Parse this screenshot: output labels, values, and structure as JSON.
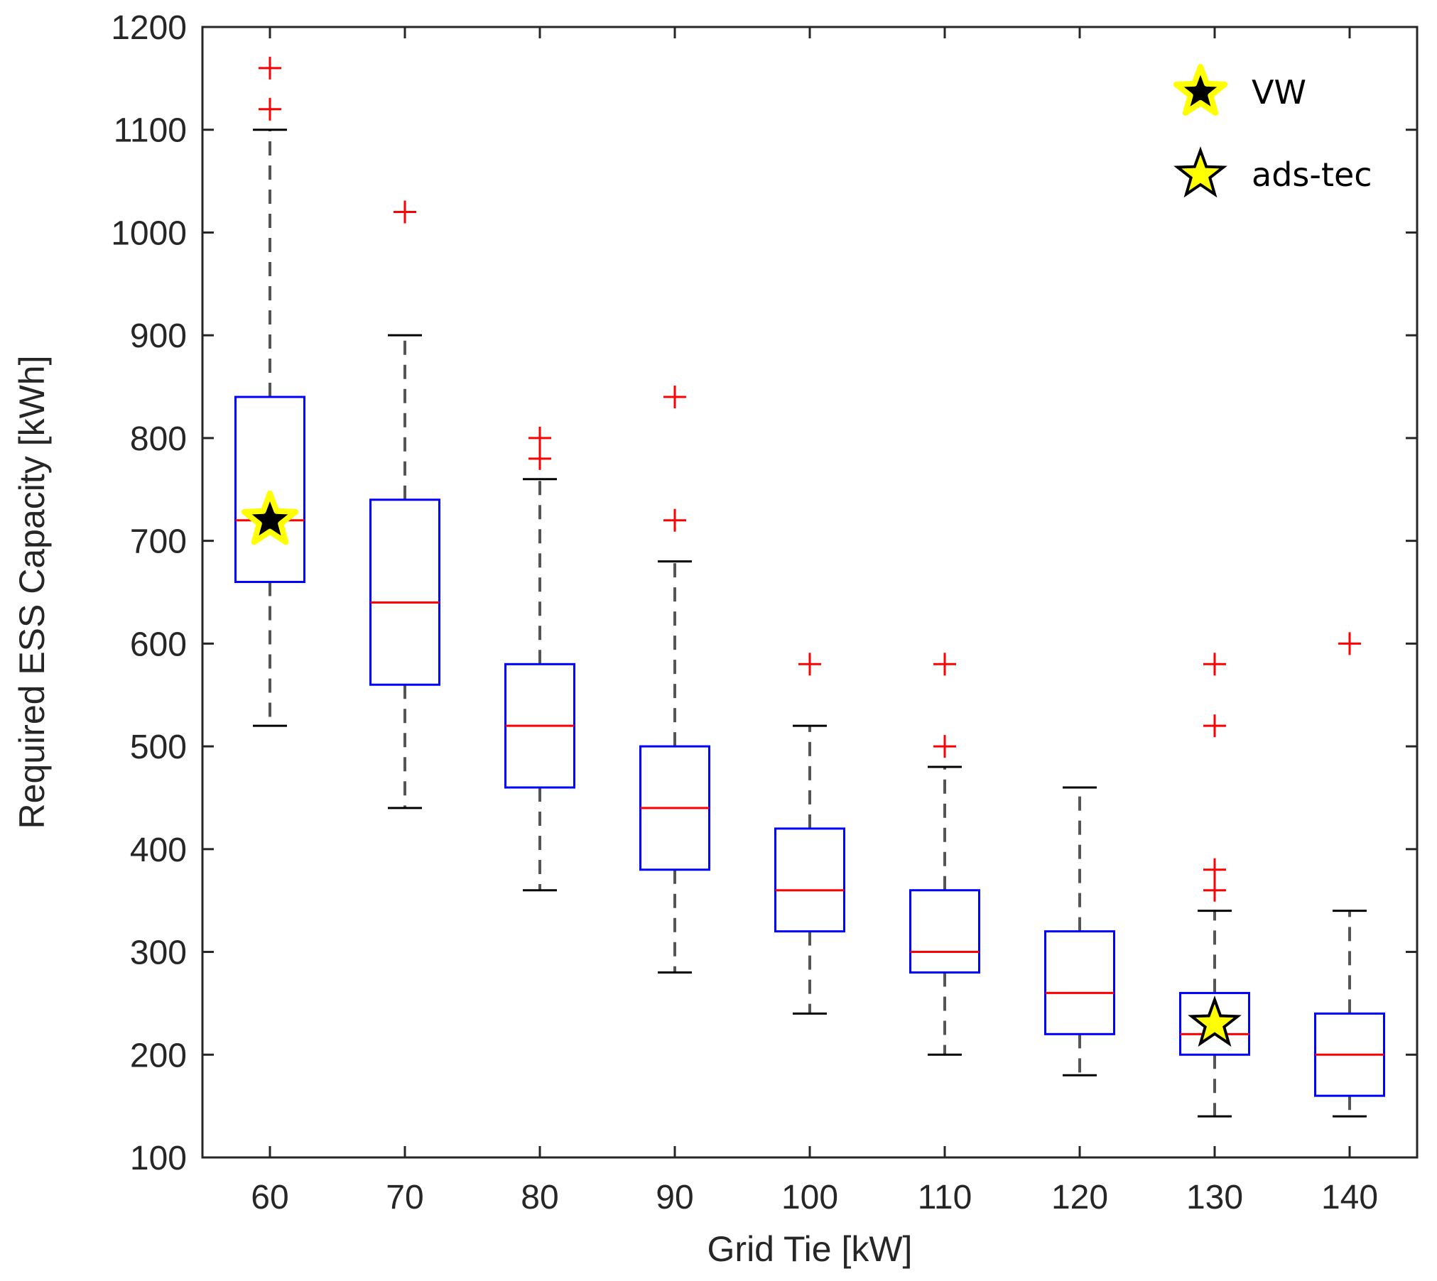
{
  "chart_data": {
    "type": "boxplot",
    "title": "",
    "xlabel": "Grid Tie [kW]",
    "ylabel": "Required ESS Capacity [kWh]",
    "ylim": [
      100,
      1200
    ],
    "yticks": [
      100,
      200,
      300,
      400,
      500,
      600,
      700,
      800,
      900,
      1000,
      1100,
      1200
    ],
    "categories": [
      "60",
      "70",
      "80",
      "90",
      "100",
      "110",
      "120",
      "130",
      "140"
    ],
    "grid": false,
    "boxes": [
      {
        "category": "60",
        "whisker_low": 520,
        "q1": 660,
        "median": 720,
        "q3": 840,
        "whisker_high": 1100,
        "outliers": [
          1120,
          1160
        ]
      },
      {
        "category": "70",
        "whisker_low": 440,
        "q1": 560,
        "median": 640,
        "q3": 740,
        "whisker_high": 900,
        "outliers": [
          1020
        ]
      },
      {
        "category": "80",
        "whisker_low": 360,
        "q1": 460,
        "median": 520,
        "q3": 580,
        "whisker_high": 760,
        "outliers": [
          780,
          800
        ]
      },
      {
        "category": "90",
        "whisker_low": 280,
        "q1": 380,
        "median": 440,
        "q3": 500,
        "whisker_high": 680,
        "outliers": [
          720,
          840
        ]
      },
      {
        "category": "100",
        "whisker_low": 240,
        "q1": 320,
        "median": 360,
        "q3": 420,
        "whisker_high": 520,
        "outliers": [
          580
        ]
      },
      {
        "category": "110",
        "whisker_low": 200,
        "q1": 280,
        "median": 300,
        "q3": 360,
        "whisker_high": 480,
        "outliers": [
          500,
          580
        ]
      },
      {
        "category": "120",
        "whisker_low": 180,
        "q1": 220,
        "median": 260,
        "q3": 320,
        "whisker_high": 460,
        "outliers": []
      },
      {
        "category": "130",
        "whisker_low": 140,
        "q1": 200,
        "median": 220,
        "q3": 260,
        "whisker_high": 340,
        "outliers": [
          360,
          380,
          520,
          580
        ]
      },
      {
        "category": "140",
        "whisker_low": 140,
        "q1": 160,
        "median": 200,
        "q3": 240,
        "whisker_high": 340,
        "outliers": [
          600
        ]
      }
    ],
    "markers": [
      {
        "name": "VW",
        "category": "60",
        "value": 720,
        "fill": "#000000",
        "edge": "#ffff00"
      },
      {
        "name": "ads-tec",
        "category": "130",
        "value": 230,
        "fill": "#ffff00",
        "edge": "#000000"
      }
    ],
    "legend": {
      "position": "top-right",
      "entries": [
        {
          "label": "VW",
          "marker_fill": "#000000",
          "marker_edge": "#ffff00"
        },
        {
          "label": "ads-tec",
          "marker_fill": "#ffff00",
          "marker_edge": "#000000"
        }
      ]
    },
    "colors": {
      "box": "#0000ff",
      "median": "#ff0000",
      "whisker": "#000000",
      "outlier": "#ff0000",
      "axis": "#262626"
    }
  }
}
